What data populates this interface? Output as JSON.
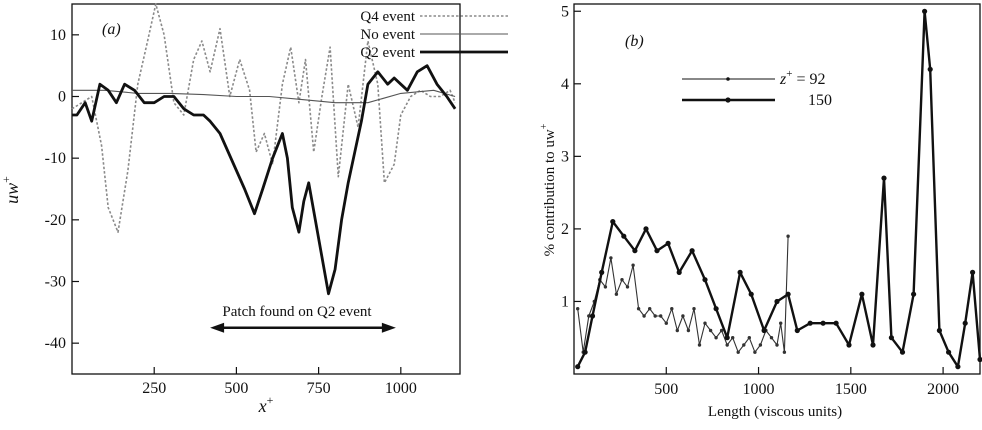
{
  "chart_data": [
    {
      "panel_label": "(a)",
      "type": "line",
      "xlabel": "x",
      "xlabel_sup": "+",
      "ylabel": "uw",
      "ylabel_sup": "+",
      "xlim": [
        0,
        1180
      ],
      "ylim": [
        -45,
        15
      ],
      "xticks": [
        250,
        500,
        750,
        1000
      ],
      "yticks": [
        -40,
        -30,
        -20,
        -10,
        0,
        10
      ],
      "legend_position": "top-right",
      "series": [
        {
          "name": "Q4 event",
          "style": "dotted",
          "x": [
            0,
            30,
            60,
            90,
            110,
            140,
            170,
            200,
            230,
            255,
            280,
            310,
            340,
            370,
            395,
            420,
            450,
            480,
            510,
            540,
            560,
            585,
            610,
            640,
            665,
            690,
            710,
            735,
            760,
            785,
            810,
            840,
            870,
            900,
            930,
            950,
            980,
            1000,
            1030,
            1060,
            1090,
            1120,
            1150,
            1165
          ],
          "y": [
            -2,
            -1,
            0,
            -8,
            -18,
            -22,
            -12,
            2,
            9,
            15,
            10,
            -1,
            -3,
            6,
            9,
            4,
            11,
            0,
            6,
            1,
            -9,
            -6,
            -11,
            2,
            8,
            -1,
            6,
            -9,
            0,
            8,
            -13,
            2,
            -5,
            9,
            2,
            -14,
            -11,
            -3,
            0,
            1,
            0,
            0,
            1,
            -1
          ]
        },
        {
          "name": "No event",
          "style": "thin",
          "x": [
            0,
            100,
            200,
            300,
            400,
            500,
            600,
            700,
            800,
            900,
            1000,
            1100,
            1165
          ],
          "y": [
            1,
            1,
            0.5,
            0.5,
            0.3,
            0,
            0,
            -0.5,
            -1,
            -1,
            0.5,
            1,
            0
          ]
        },
        {
          "name": "Q2 event",
          "style": "thick",
          "x": [
            0,
            15,
            40,
            60,
            85,
            110,
            135,
            160,
            190,
            220,
            250,
            280,
            310,
            340,
            370,
            400,
            420,
            450,
            475,
            500,
            525,
            555,
            580,
            610,
            640,
            655,
            670,
            690,
            705,
            720,
            740,
            760,
            780,
            800,
            820,
            840,
            860,
            880,
            900,
            930,
            960,
            980,
            1000,
            1020,
            1050,
            1080,
            1110,
            1140,
            1165
          ],
          "y": [
            -3,
            -3,
            -1,
            -4,
            2,
            1,
            -1,
            2,
            1,
            -1,
            -1,
            0,
            0,
            -2,
            -3,
            -3,
            -4,
            -6,
            -9,
            -12,
            -15,
            -19,
            -15,
            -10,
            -6,
            -10,
            -18,
            -22,
            -17,
            -14,
            -20,
            -26,
            -32,
            -28,
            -20,
            -14,
            -9,
            -4,
            2,
            4,
            2,
            3,
            2,
            1,
            4,
            5,
            2,
            0,
            -2
          ]
        }
      ],
      "annotation": {
        "text": "Patch found on Q2 event",
        "arrow_from": 420,
        "arrow_to": 985,
        "arrow_y": -37.5
      }
    },
    {
      "panel_label": "(b)",
      "type": "line",
      "xlabel": "Length (viscous units)",
      "ylabel": "% contribution to uw",
      "ylabel_sup": "+",
      "xlim": [
        0,
        2200
      ],
      "ylim": [
        0,
        5.1
      ],
      "xticks": [
        500,
        1000,
        1500,
        2000
      ],
      "yticks": [
        1,
        2,
        3,
        4,
        5
      ],
      "legend_position": "upper-left",
      "legend_prefix": "z",
      "legend_prefix_sup": "+",
      "legend_eq": " = ",
      "series": [
        {
          "name": "92",
          "style": "thin",
          "x": [
            20,
            50,
            80,
            110,
            140,
            170,
            200,
            230,
            260,
            290,
            320,
            350,
            380,
            410,
            440,
            470,
            500,
            530,
            560,
            590,
            620,
            650,
            680,
            710,
            740,
            770,
            800,
            830,
            860,
            890,
            920,
            950,
            980,
            1010,
            1040,
            1070,
            1100,
            1120,
            1140,
            1160
          ],
          "y": [
            0.9,
            0.3,
            0.8,
            1.0,
            1.3,
            1.2,
            1.6,
            1.1,
            1.3,
            1.2,
            1.5,
            0.9,
            0.8,
            0.9,
            0.8,
            0.8,
            0.7,
            0.9,
            0.6,
            0.8,
            0.6,
            0.9,
            0.4,
            0.7,
            0.6,
            0.5,
            0.6,
            0.4,
            0.5,
            0.3,
            0.4,
            0.5,
            0.3,
            0.4,
            0.6,
            0.5,
            0.4,
            0.7,
            0.3,
            1.9
          ]
        },
        {
          "name": "150",
          "style": "thick",
          "x": [
            20,
            60,
            100,
            150,
            210,
            270,
            330,
            390,
            450,
            510,
            570,
            640,
            710,
            770,
            830,
            900,
            960,
            1030,
            1100,
            1160,
            1210,
            1280,
            1350,
            1420,
            1490,
            1560,
            1620,
            1680,
            1720,
            1780,
            1840,
            1900,
            1930,
            1980,
            2030,
            2080,
            2120,
            2160,
            2200
          ],
          "y": [
            0.1,
            0.3,
            0.8,
            1.4,
            2.1,
            1.9,
            1.7,
            2.0,
            1.7,
            1.8,
            1.4,
            1.7,
            1.3,
            0.9,
            0.5,
            1.4,
            1.1,
            0.6,
            1.0,
            1.1,
            0.6,
            0.7,
            0.7,
            0.7,
            0.4,
            1.1,
            0.4,
            2.7,
            0.5,
            0.3,
            1.1,
            5.0,
            4.2,
            0.6,
            0.3,
            0.1,
            0.7,
            1.4,
            0.2
          ]
        }
      ]
    }
  ]
}
